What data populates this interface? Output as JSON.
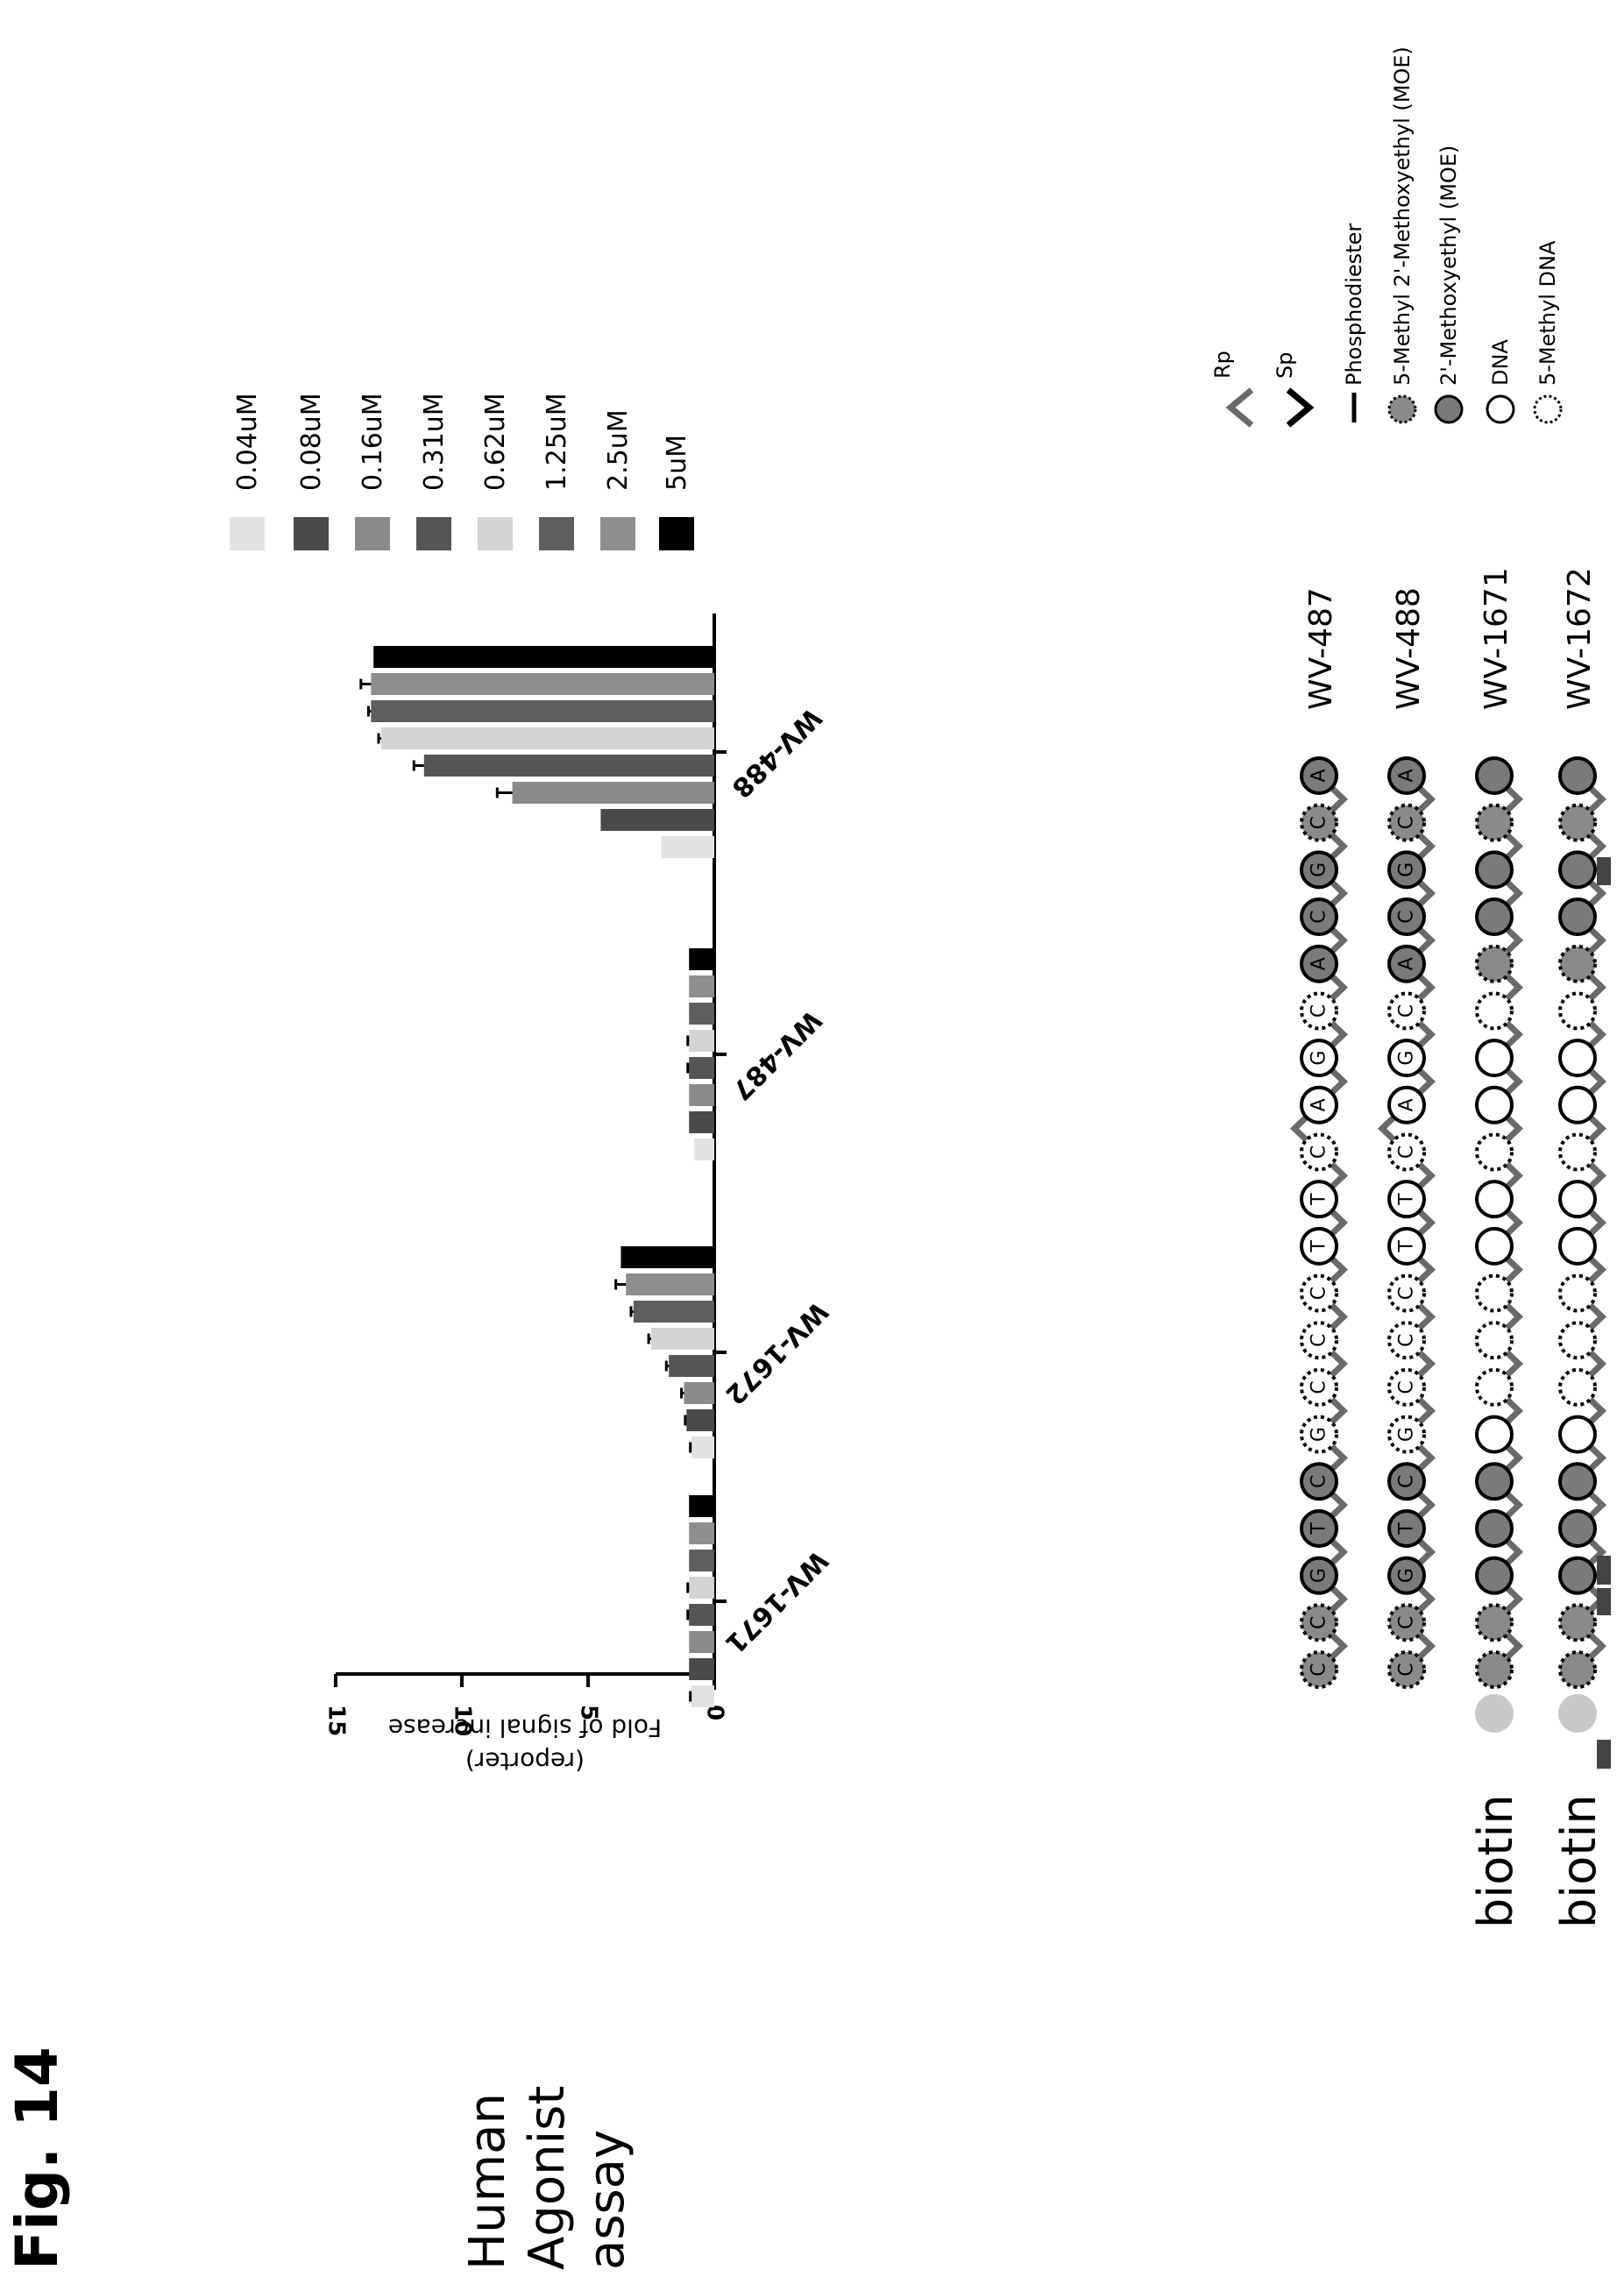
{
  "figure_label": "Fig. 14",
  "panel_title": [
    "Human",
    "Agonist",
    "assay"
  ],
  "chart_data": {
    "type": "bar",
    "orientation": "rotated 90 degrees counter-clockwise",
    "ylabel": [
      "Fold of signal increase",
      "(reporter)"
    ],
    "ylim": [
      0,
      15
    ],
    "yticks": [
      "0",
      "5",
      "10",
      "15"
    ],
    "categories": [
      "WV-1671",
      "WV-1672",
      "WV-487",
      "WV-488"
    ],
    "series": [
      {
        "name": "0.04uM",
        "color": "#e2e2e2",
        "values": [
          0.9,
          0.9,
          0.8,
          2.1
        ],
        "err": [
          0.05,
          0.05,
          0.0,
          0.0
        ]
      },
      {
        "name": "0.08uM",
        "color": "#4a4a4a",
        "values": [
          1.0,
          1.1,
          1.0,
          4.5
        ],
        "err": [
          0.0,
          0.05,
          0.0,
          0.0
        ]
      },
      {
        "name": "0.16uM",
        "color": "#8a8a8a",
        "values": [
          1.0,
          1.2,
          1.0,
          8.0
        ],
        "err": [
          0.0,
          0.1,
          0.0,
          0.6
        ]
      },
      {
        "name": "0.31uM",
        "color": "#555555",
        "values": [
          1.0,
          1.8,
          1.0,
          11.5
        ],
        "err": [
          0.05,
          0.1,
          0.05,
          0.4
        ]
      },
      {
        "name": "0.62uM",
        "color": "#d4d4d4",
        "values": [
          1.0,
          2.5,
          1.0,
          13.2
        ],
        "err": [
          0.05,
          0.1,
          0.05,
          0.1
        ]
      },
      {
        "name": "1.25uM",
        "color": "#5e5e5e",
        "values": [
          1.0,
          3.2,
          1.0,
          13.6
        ],
        "err": [
          0.0,
          0.1,
          0.0,
          0.1
        ]
      },
      {
        "name": "2.5uM",
        "color": "#8e8e8e",
        "values": [
          1.0,
          3.5,
          1.0,
          13.6
        ],
        "err": [
          0.0,
          0.4,
          0.0,
          0.4
        ]
      },
      {
        "name": "5uM",
        "color": "#000000",
        "values": [
          1.0,
          3.7,
          1.0,
          13.5
        ],
        "err": [
          0.0,
          0.0,
          0.0,
          0.0
        ]
      }
    ]
  },
  "sequences": [
    {
      "name": "WV-487",
      "prefix": "",
      "bases": [
        "C",
        "C",
        "G",
        "T",
        "C",
        "G",
        "C",
        "C",
        "C",
        "T",
        "T",
        "C",
        "A",
        "G",
        "C",
        "A",
        "C",
        "G",
        "C",
        "A"
      ]
    },
    {
      "name": "WV-488",
      "prefix": "",
      "bases": [
        "C",
        "C",
        "G",
        "T",
        "C",
        "G",
        "C",
        "C",
        "C",
        "T",
        "T",
        "C",
        "A",
        "G",
        "C",
        "A",
        "C",
        "G",
        "C",
        "A"
      ]
    },
    {
      "name": "WV-1671",
      "prefix": "biotin",
      "bases": []
    },
    {
      "name": "WV-1672",
      "prefix": "biotin",
      "bases": []
    }
  ],
  "legend2": {
    "rp": "Rp",
    "sp": "Sp",
    "phosphodiester": "Phosphodiester",
    "methyl_moe": "5-Methyl 2'-Methoxyethyl (MOE)",
    "moe": "2'-Methoxyethyl (MOE)",
    "dna": "DNA",
    "methyl_dna": "5-Methyl DNA"
  }
}
